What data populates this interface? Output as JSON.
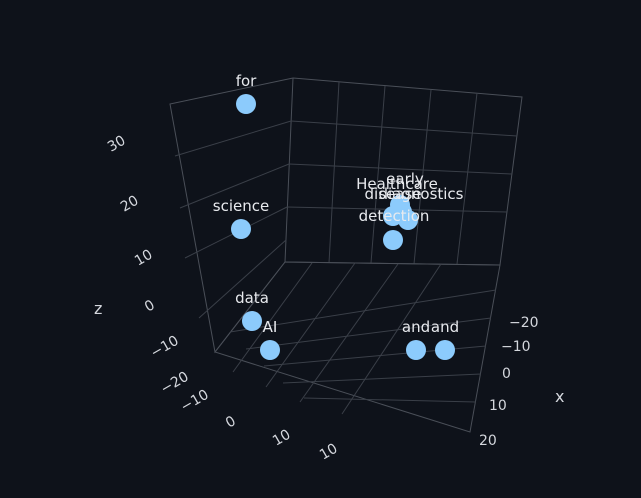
{
  "colors": {
    "background": "#0e121a",
    "marker": "#8ccbfc",
    "grid": "#3a3f48",
    "text": "#d4d7dd"
  },
  "chart_data": {
    "type": "scatter3d",
    "title": "",
    "axes": {
      "x": {
        "label": "x",
        "ticks": [
          "−20",
          "−10",
          "0",
          "10",
          "20"
        ],
        "grid": true
      },
      "y": {
        "label": "",
        "ticks": [
          "−20",
          "−10",
          "0",
          "10"
        ],
        "grid": true
      },
      "z": {
        "label": "z",
        "ticks": [
          "−10",
          "0",
          "10",
          "20",
          "30"
        ],
        "grid": true
      }
    },
    "points": [
      {
        "label": "for"
      },
      {
        "label": "science"
      },
      {
        "label": "data"
      },
      {
        "label": "AI"
      },
      {
        "label": "and"
      },
      {
        "label": "and"
      },
      {
        "label": "Healthcare"
      },
      {
        "label": "early"
      },
      {
        "label": "disease"
      },
      {
        "label": "diagnostics"
      },
      {
        "label": "detection"
      },
      {
        "label": ""
      }
    ]
  }
}
